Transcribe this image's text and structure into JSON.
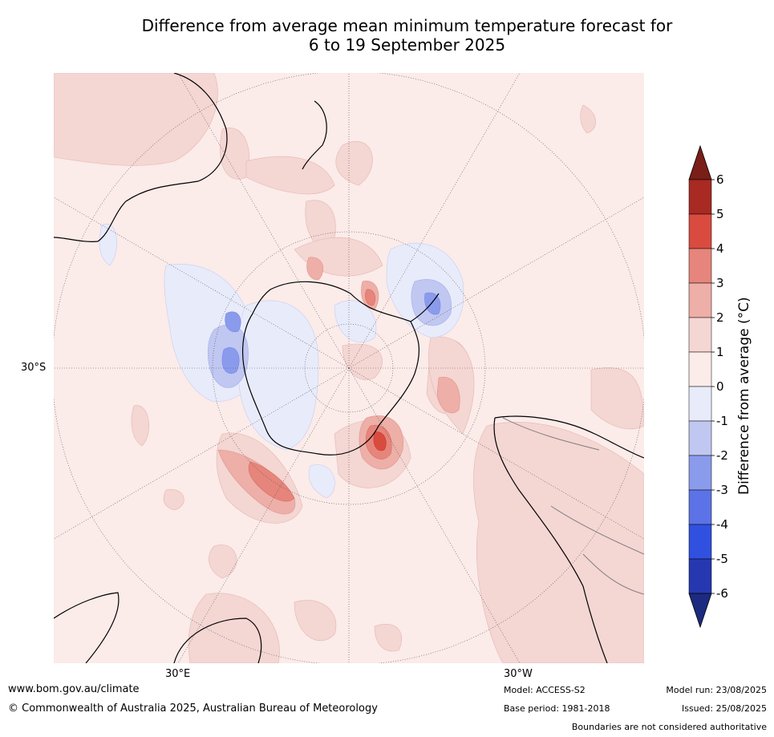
{
  "title": {
    "line1": "Difference from average mean minimum temperature forecast for",
    "line2": "6 to 19 September 2025"
  },
  "map": {
    "projection": "south polar stereographic",
    "lat_label": "30°S",
    "lon_labels": [
      "30°E",
      "30°W"
    ],
    "background_color": "#fbebe9",
    "coastline_color": "#000000",
    "boundary_color": "#7f7f7f",
    "graticule": "dotted"
  },
  "colorbar": {
    "label": "Difference from average (°C)",
    "ticks": [
      "6",
      "5",
      "4",
      "3",
      "2",
      "1",
      "0",
      "-1",
      "-2",
      "-3",
      "-4",
      "-5",
      "-6"
    ],
    "bins": [
      {
        "range": "5 to 6",
        "color": "#a82a22"
      },
      {
        "range": "4 to 5",
        "color": "#d94b3f"
      },
      {
        "range": "3 to 4",
        "color": "#e6857b"
      },
      {
        "range": "2 to 3",
        "color": "#edafa7"
      },
      {
        "range": "1 to 2",
        "color": "#f4d6d3"
      },
      {
        "range": "0 to 1",
        "color": "#fbebe9"
      },
      {
        "range": "-1 to 0",
        "color": "#e8ebfa"
      },
      {
        "range": "-2 to -1",
        "color": "#c0c7f1"
      },
      {
        "range": "-3 to -2",
        "color": "#8b9bec"
      },
      {
        "range": "-4 to -3",
        "color": "#5b73e6"
      },
      {
        "range": "-5 to -4",
        "color": "#3050e0"
      },
      {
        "range": "-6 to -5",
        "color": "#2638b0"
      }
    ],
    "over_color": "#7a1e18",
    "under_color": "#1c2a80"
  },
  "footer": {
    "url": "www.bom.gov.au/climate",
    "copyright": "© Commonwealth of Australia 2025, Australian Bureau of Meteorology",
    "model": "Model: ACCESS-S2",
    "base_period": "Base period: 1981-2018",
    "model_run": "Model run: 23/08/2025",
    "issued": "Issued: 25/08/2025",
    "disclaimer": "Boundaries are not considered authoritative"
  }
}
